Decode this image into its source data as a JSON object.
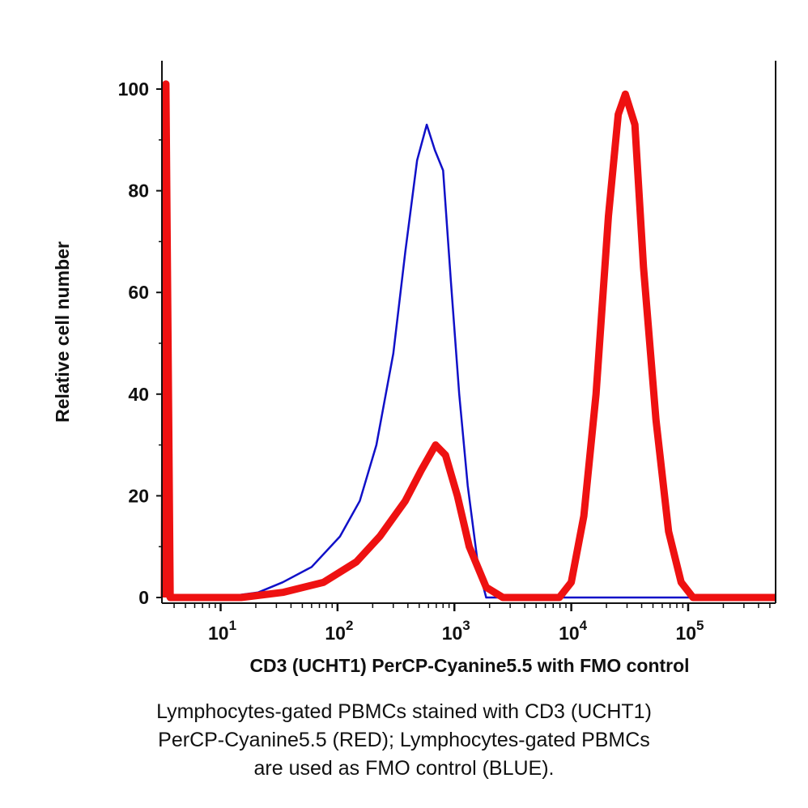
{
  "chart_data": {
    "type": "line",
    "xlabel": "CD3 (UCHT1) PerCP-Cyanine5.5 with FMO control",
    "ylabel": "Relative cell number",
    "x_scale": "log",
    "xlim": [
      3.3,
      560000
    ],
    "ylim": [
      0,
      106
    ],
    "x_ticks": [
      {
        "base": "10",
        "exp": "1",
        "value": 10
      },
      {
        "base": "10",
        "exp": "2",
        "value": 100
      },
      {
        "base": "10",
        "exp": "3",
        "value": 1000
      },
      {
        "base": "10",
        "exp": "4",
        "value": 10000
      },
      {
        "base": "10",
        "exp": "5",
        "value": 100000
      }
    ],
    "y_ticks": [
      0,
      20,
      40,
      60,
      80,
      100
    ],
    "grid": false,
    "series": [
      {
        "color": "#1010c8",
        "line": "thin",
        "x": [
          3.3,
          3.4,
          3.5,
          10,
          21,
          34,
          60,
          105,
          155,
          215,
          300,
          380,
          480,
          580,
          680,
          800,
          935,
          1100,
          1300,
          1600,
          1870,
          560000
        ],
        "y": [
          0,
          101,
          0,
          0,
          1,
          3,
          6,
          12,
          19,
          30,
          48,
          68,
          86,
          93,
          88,
          84,
          62,
          40,
          22,
          6,
          0,
          0
        ]
      },
      {
        "color": "#ee1111",
        "line": "thick",
        "x": [
          3.3,
          3.4,
          3.7,
          15,
          34,
          76,
          145,
          230,
          380,
          520,
          690,
          840,
          1060,
          1340,
          1870,
          2600,
          7900,
          10000,
          12800,
          16300,
          20800,
          25200,
          29000,
          35000,
          41500,
          53000,
          68000,
          87000,
          110000,
          560000
        ],
        "y": [
          0,
          101,
          0,
          0,
          1,
          3,
          7,
          12,
          19,
          25,
          30,
          28,
          20,
          10,
          2,
          0,
          0,
          3,
          16,
          40,
          75,
          95,
          99,
          93,
          65,
          35,
          13,
          3,
          0,
          0
        ]
      }
    ]
  },
  "caption": [
    "Lymphocytes-gated PBMCs stained with CD3 (UCHT1)",
    "PerCP-Cyanine5.5 (RED); Lymphocytes-gated PBMCs",
    "are used as FMO control (BLUE)."
  ]
}
